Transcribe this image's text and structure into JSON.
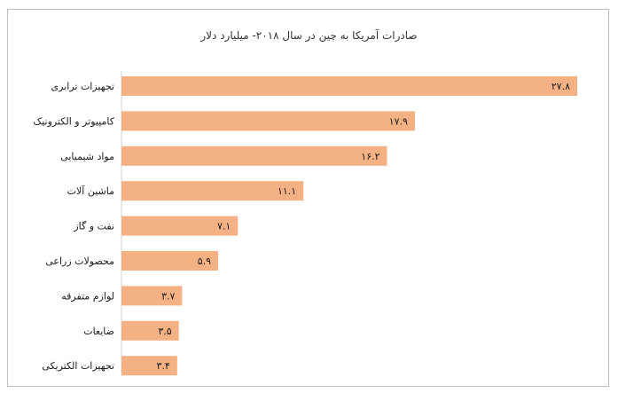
{
  "chart_data": {
    "type": "bar",
    "orientation": "horizontal",
    "title": "صادرات آمریکا به چین در سال ۲۰۱۸- میلیارد دلار",
    "xlabel": "",
    "ylabel": "",
    "categories": [
      "تجهیزات ترابری",
      "کامپیوتر و الکترونیک",
      "مواد شیمیایی",
      "ماشین آلات",
      "نفت و گاز",
      "محصولات زراعی",
      "لوازم متفرقه",
      "ضایعات",
      "تجهیزات الکتریکی"
    ],
    "values": [
      27.8,
      17.9,
      16.2,
      11.1,
      7.1,
      5.9,
      3.7,
      3.5,
      3.4
    ],
    "value_labels": [
      "۲۷.۸",
      "۱۷.۹",
      "۱۶.۲",
      "۱۱.۱",
      "۷.۱",
      "۵.۹",
      "۳.۷",
      "۳.۵",
      "۳.۴"
    ],
    "xlim": [
      0,
      27.8
    ],
    "grid": false,
    "legend": "none",
    "colors": {
      "bar": "#f4b183",
      "text": "#1a1a1a"
    }
  }
}
